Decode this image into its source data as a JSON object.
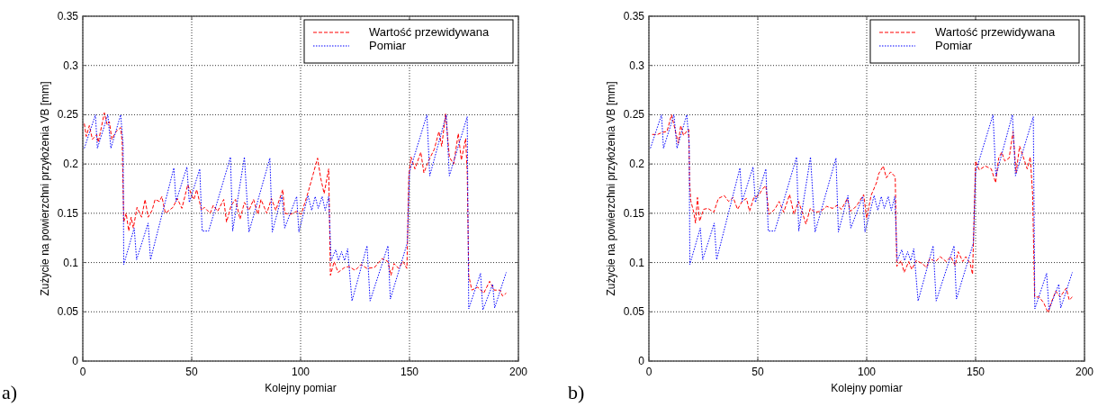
{
  "chart_data": [
    {
      "type": "line",
      "xlabel": "Kolejny pomiar",
      "ylabel": "Zużycie na powierzchni przyłożenia VB [mm]",
      "xlim": [
        0,
        200
      ],
      "xticks": [
        0,
        50,
        100,
        150,
        200
      ],
      "ylim": [
        0,
        0.35
      ],
      "yticks": [
        0,
        0.05,
        0.1,
        0.15,
        0.2,
        0.25,
        0.3,
        0.35
      ],
      "grid": true,
      "legend": "top right",
      "annotations": [
        "a)"
      ],
      "series": [
        {
          "name": "Wartość przewidywana",
          "color": "#ff0000",
          "line_style": "dashed",
          "x": [
            0.7,
            1.6,
            3,
            4.4,
            6.4,
            7.1,
            9.9,
            11.2,
            12.2,
            13.3,
            15.3,
            17.4,
            18.1,
            18.8,
            19.9,
            21.1,
            22.2,
            23.2,
            24.9,
            27,
            28.6,
            30,
            31.8,
            33.2,
            35.2,
            36.3,
            37.9,
            41.4,
            43.4,
            45.5,
            48.2,
            50,
            51,
            52.3,
            54.5,
            55.8,
            58.5,
            59.9,
            61.9,
            64.7,
            66,
            68.1,
            70.1,
            72.2,
            74.2,
            76.3,
            78.4,
            80.4,
            81.8,
            84.5,
            86.6,
            88.6,
            91.8,
            92.7,
            95.5,
            98.2,
            100.3,
            103,
            104.8,
            107.8,
            109.2,
            110.8,
            112.9,
            113.7,
            115.4,
            117.2,
            120.2,
            122.3,
            125,
            127.7,
            130.5,
            133.9,
            137.4,
            140.1,
            141.5,
            142.9,
            145,
            147,
            148.8,
            149.7,
            150.7,
            152.5,
            155.2,
            156.6,
            158.7,
            161.4,
            163.5,
            164.8,
            166.6,
            168.3,
            170.3,
            172.4,
            173.8,
            175.8,
            176.5,
            177.2,
            178.6,
            181.3,
            184.1,
            186.8,
            188.9,
            191.6,
            192.7,
            194.4
          ],
          "values": [
            0.241,
            0.228,
            0.239,
            0.225,
            0.23,
            0.222,
            0.252,
            0.24,
            0.243,
            0.225,
            0.233,
            0.237,
            0.222,
            0.141,
            0.15,
            0.132,
            0.146,
            0.135,
            0.156,
            0.146,
            0.164,
            0.146,
            0.153,
            0.164,
            0.162,
            0.167,
            0.15,
            0.156,
            0.165,
            0.155,
            0.179,
            0.168,
            0.164,
            0.174,
            0.153,
            0.156,
            0.15,
            0.158,
            0.152,
            0.164,
            0.141,
            0.158,
            0.164,
            0.144,
            0.161,
            0.153,
            0.164,
            0.149,
            0.164,
            0.15,
            0.165,
            0.153,
            0.174,
            0.15,
            0.149,
            0.152,
            0.149,
            0.168,
            0.182,
            0.206,
            0.186,
            0.17,
            0.195,
            0.087,
            0.101,
            0.09,
            0.095,
            0.096,
            0.092,
            0.098,
            0.094,
            0.095,
            0.104,
            0.101,
            0.087,
            0.099,
            0.094,
            0.101,
            0.094,
            0.188,
            0.207,
            0.195,
            0.212,
            0.191,
            0.203,
            0.215,
            0.233,
            0.218,
            0.251,
            0.207,
            0.2,
            0.231,
            0.204,
            0.226,
            0.191,
            0.087,
            0.072,
            0.075,
            0.069,
            0.081,
            0.072,
            0.072,
            0.066,
            0.069
          ]
        },
        {
          "name": "Pomiar",
          "color": "#0000ff",
          "line_style": "dotted",
          "x": [
            0.7,
            5.8,
            6.7,
            11.5,
            12.9,
            17.4,
            18.5,
            18.8,
            23.6,
            24.7,
            30,
            31.1,
            41.8,
            42.8,
            47.8,
            48.9,
            53.7,
            54.8,
            57.8,
            67.8,
            68.8,
            74.2,
            76.3,
            85.9,
            87,
            91.4,
            92.7,
            98.2,
            99.2,
            103.4,
            105.1,
            106.7,
            108.1,
            109.9,
            111.3,
            112.9,
            114,
            116.1,
            117.4,
            118.8,
            120.2,
            121.6,
            123.6,
            130.5,
            131.9,
            140.1,
            141.2,
            149,
            150,
            158,
            159.3,
            166.9,
            168.3,
            176.5,
            177.2,
            182.6,
            183.7,
            188.2,
            189.1,
            194.4
          ],
          "values": [
            0.216,
            0.25,
            0.216,
            0.25,
            0.216,
            0.25,
            0.22,
            0.098,
            0.135,
            0.103,
            0.14,
            0.103,
            0.196,
            0.162,
            0.197,
            0.161,
            0.195,
            0.132,
            0.132,
            0.207,
            0.132,
            0.207,
            0.131,
            0.206,
            0.131,
            0.168,
            0.135,
            0.167,
            0.131,
            0.168,
            0.153,
            0.167,
            0.155,
            0.167,
            0.153,
            0.167,
            0.102,
            0.113,
            0.102,
            0.111,
            0.102,
            0.114,
            0.061,
            0.117,
            0.061,
            0.117,
            0.063,
            0.12,
            0.192,
            0.25,
            0.188,
            0.25,
            0.188,
            0.248,
            0.053,
            0.089,
            0.052,
            0.078,
            0.054,
            0.09
          ]
        }
      ]
    },
    {
      "type": "line",
      "xlabel": "Kolejny pomiar",
      "ylabel": "Zużycie na powierzchni przyłożenia VB [mm]",
      "xlim": [
        0,
        200
      ],
      "xticks": [
        0,
        50,
        100,
        150,
        200
      ],
      "ylim": [
        0,
        0.35
      ],
      "yticks": [
        0,
        0.05,
        0.1,
        0.15,
        0.2,
        0.25,
        0.3,
        0.35
      ],
      "grid": true,
      "legend": "top right",
      "annotations": [
        "b)"
      ],
      "series": [
        {
          "name": "Wartość przewidywana",
          "color": "#ff0000",
          "line_style": "dashed",
          "x": [
            1.5,
            4,
            6,
            8.3,
            10.4,
            11.9,
            13.5,
            14.6,
            15.9,
            17.3,
            18.3,
            18.7,
            19.2,
            20.6,
            21.4,
            22.3,
            23.3,
            25.1,
            27.1,
            29.8,
            31.9,
            34.6,
            36.6,
            38.7,
            40.7,
            42.8,
            44.8,
            46.2,
            48.2,
            50.3,
            52.3,
            53.7,
            55.1,
            57.8,
            59.8,
            61.9,
            64.6,
            66.6,
            68.7,
            70.7,
            72.1,
            74.1,
            76.2,
            78.9,
            81.6,
            84.3,
            86.4,
            88.4,
            91.1,
            92.5,
            95.2,
            98.6,
            100,
            102,
            104.5,
            105.5,
            107.6,
            109,
            111,
            113.1,
            113.8,
            115.8,
            117.2,
            119.3,
            120.7,
            122.7,
            125.5,
            127.5,
            128.9,
            131.7,
            133.7,
            136.5,
            138.6,
            140.6,
            142,
            144.1,
            145.5,
            147.5,
            148.6,
            150,
            151.7,
            154.4,
            157.2,
            159.2,
            160.6,
            162,
            163.4,
            165.4,
            167.2,
            168.6,
            170.2,
            171.6,
            173.7,
            175.1,
            176.2,
            177.1,
            179.2,
            181.3,
            183.3,
            184.7,
            186.8,
            188.8,
            191.6,
            193,
            194.4
          ],
          "values": [
            0.23,
            0.23,
            0.232,
            0.233,
            0.25,
            0.236,
            0.221,
            0.239,
            0.229,
            0.233,
            0.235,
            0.181,
            0.163,
            0.151,
            0.14,
            0.166,
            0.142,
            0.154,
            0.155,
            0.151,
            0.165,
            0.168,
            0.162,
            0.166,
            0.154,
            0.162,
            0.165,
            0.152,
            0.166,
            0.168,
            0.175,
            0.178,
            0.149,
            0.154,
            0.162,
            0.151,
            0.169,
            0.149,
            0.162,
            0.149,
            0.139,
            0.155,
            0.151,
            0.152,
            0.157,
            0.155,
            0.158,
            0.154,
            0.165,
            0.152,
            0.157,
            0.169,
            0.145,
            0.168,
            0.181,
            0.19,
            0.198,
            0.186,
            0.192,
            0.187,
            0.096,
            0.102,
            0.09,
            0.101,
            0.093,
            0.102,
            0.099,
            0.095,
            0.104,
            0.101,
            0.106,
            0.101,
            0.106,
            0.097,
            0.111,
            0.101,
            0.106,
            0.099,
            0.088,
            0.203,
            0.194,
            0.198,
            0.195,
            0.181,
            0.206,
            0.212,
            0.203,
            0.206,
            0.233,
            0.191,
            0.218,
            0.209,
            0.195,
            0.207,
            0.169,
            0.065,
            0.065,
            0.059,
            0.049,
            0.059,
            0.071,
            0.065,
            0.074,
            0.062,
            0.065
          ]
        },
        {
          "name": "Pomiar",
          "color": "#0000ff",
          "line_style": "dotted",
          "x": [
            0.7,
            5.8,
            6.7,
            11.5,
            12.9,
            17.4,
            18.5,
            18.8,
            23.6,
            24.7,
            30,
            31.1,
            41.8,
            42.8,
            47.8,
            48.9,
            53.7,
            54.8,
            57.8,
            67.8,
            68.8,
            74.2,
            76.3,
            85.9,
            87,
            91.4,
            92.7,
            98.2,
            99.2,
            103.4,
            105.1,
            106.7,
            108.1,
            109.9,
            111.3,
            112.9,
            114,
            116.1,
            117.4,
            118.8,
            120.2,
            121.6,
            123.6,
            130.5,
            131.9,
            140.1,
            141.2,
            149,
            150,
            158,
            159.3,
            166.9,
            168.3,
            176.5,
            177.2,
            182.6,
            183.7,
            188.2,
            189.1,
            194.4
          ],
          "values": [
            0.216,
            0.25,
            0.216,
            0.25,
            0.216,
            0.25,
            0.22,
            0.098,
            0.135,
            0.103,
            0.14,
            0.103,
            0.196,
            0.162,
            0.197,
            0.161,
            0.195,
            0.132,
            0.132,
            0.207,
            0.132,
            0.207,
            0.131,
            0.206,
            0.131,
            0.168,
            0.135,
            0.167,
            0.131,
            0.168,
            0.153,
            0.167,
            0.155,
            0.167,
            0.153,
            0.167,
            0.102,
            0.113,
            0.102,
            0.111,
            0.102,
            0.114,
            0.061,
            0.117,
            0.061,
            0.117,
            0.063,
            0.12,
            0.192,
            0.25,
            0.188,
            0.25,
            0.188,
            0.248,
            0.053,
            0.089,
            0.052,
            0.078,
            0.054,
            0.09
          ]
        }
      ]
    }
  ]
}
